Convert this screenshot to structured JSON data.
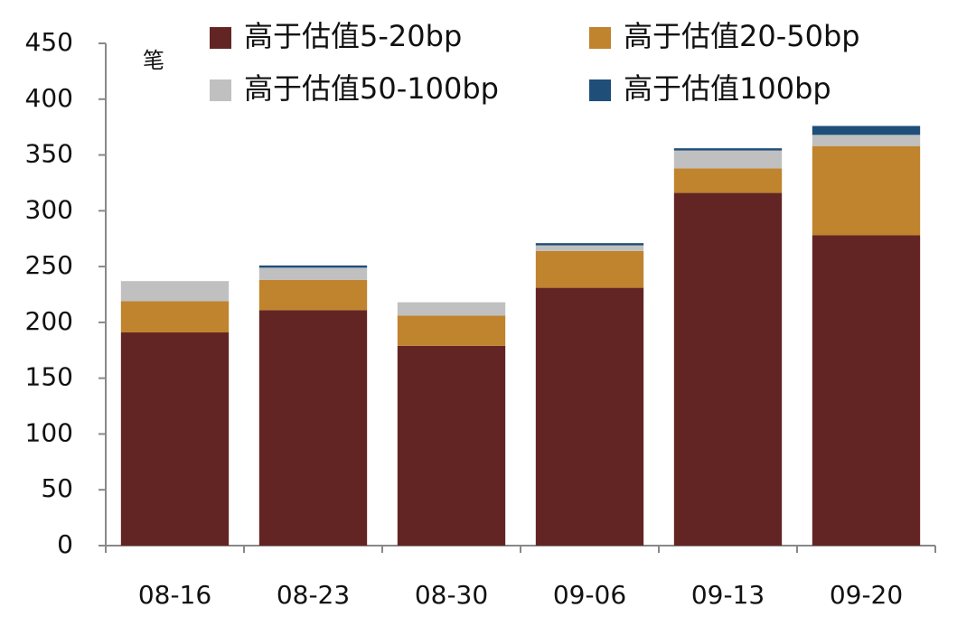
{
  "chart_data": {
    "type": "stacked_bar",
    "y_label": "笔",
    "categories": [
      "08-16",
      "08-23",
      "08-30",
      "09-06",
      "09-13",
      "09-20"
    ],
    "series": [
      {
        "name": "高于估值5-20bp",
        "color": "#632523",
        "values": [
          191,
          211,
          179,
          231,
          316,
          278
        ]
      },
      {
        "name": "高于估值20-50bp",
        "color": "#c0832e",
        "values": [
          28,
          27,
          27,
          33,
          22,
          80
        ]
      },
      {
        "name": "高于估值50-100bp",
        "color": "#c0c0c0",
        "values": [
          18,
          11,
          12,
          5,
          16,
          10
        ]
      },
      {
        "name": "高于估值100bp",
        "color": "#1f4e79",
        "values": [
          0,
          2,
          0,
          2,
          2,
          8
        ]
      }
    ],
    "ylim": [
      0,
      450
    ],
    "yticks": [
      0,
      50,
      100,
      150,
      200,
      250,
      300,
      350,
      400,
      450
    ],
    "grid": false,
    "legend": "top"
  }
}
